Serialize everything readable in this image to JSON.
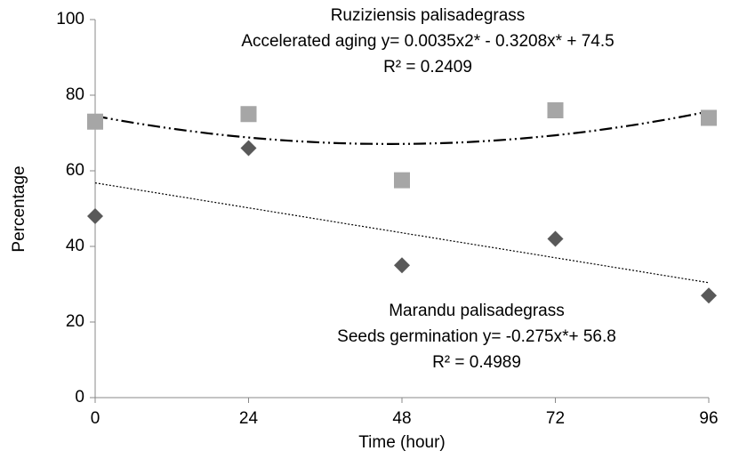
{
  "chart_data": {
    "type": "scatter",
    "x_label": "Time (hour)",
    "y_label": "Percentage",
    "xlim": [
      0,
      96
    ],
    "xticks": [
      0,
      24,
      48,
      72,
      96
    ],
    "ylim": [
      0,
      100
    ],
    "yticks": [
      0,
      20,
      40,
      60,
      80,
      100
    ],
    "series": [
      {
        "color": "#a6a6a6",
        "marker": "square",
        "trendline": "poly2",
        "trendline_style": "dash-dot",
        "x": [
          0,
          24,
          48,
          72,
          96
        ],
        "values": [
          73,
          75,
          57.5,
          76,
          74
        ]
      },
      {
        "color": "#595959",
        "marker": "diamond",
        "trendline": "linear",
        "trendline_style": "dotted",
        "x": [
          0,
          24,
          48,
          72,
          96
        ],
        "values": [
          48,
          66,
          35,
          42,
          27
        ]
      }
    ],
    "annotations": [
      [
        "Ruziziensis palisadegrass",
        "Accelerated aging y= 0.0035x2* - 0.3208x* + 74.5",
        "R² = 0.2409"
      ],
      [
        "Marandu palisadegrass",
        "Seeds germination y= -0.275x*+ 56.8",
        "R² = 0.4989"
      ]
    ]
  }
}
